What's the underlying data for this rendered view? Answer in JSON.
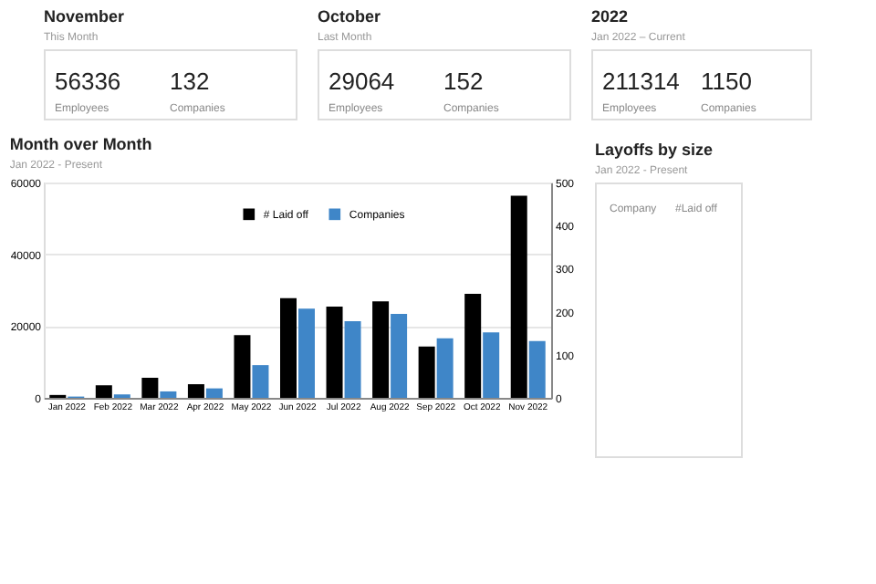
{
  "chart_data": [
    {
      "type": "other",
      "title": "November",
      "subtitle": "This Month",
      "annotations": [
        "56336",
        "Employees",
        "132",
        "Companies"
      ]
    },
    {
      "type": "other",
      "title": "October",
      "subtitle": "Last Month",
      "annotations": [
        "29064",
        "Employees",
        "152",
        "Companies"
      ]
    },
    {
      "type": "other",
      "title": "2022",
      "subtitle": "Jan 2022 – Current",
      "annotations": [
        "211314",
        "Employees",
        "1150",
        "Companies"
      ]
    },
    {
      "type": "bar",
      "title": "Month over Month",
      "subtitle": "Jan 2022 - Present",
      "categories": [
        "Jan 2022",
        "Feb 2022",
        "Mar 2022",
        "Apr 2022",
        "May 2022",
        "Jun 2022",
        "Jul 2022",
        "Aug 2022",
        "Sep 2022",
        "Oct 2022",
        "Nov 2022"
      ],
      "series": [
        {
          "name": "# Laid off",
          "color": "#000000",
          "values": [
            800,
            3500,
            5600,
            3800,
            17500,
            27800,
            25400,
            26900,
            14300,
            29000,
            56300
          ]
        },
        {
          "name": "Companies",
          "color": "#3f86c8",
          "axis": "y2",
          "values": [
            3,
            8,
            15,
            22,
            76,
            207,
            178,
            195,
            138,
            152,
            132
          ]
        }
      ],
      "ylim": [
        0,
        60000
      ],
      "yticks": [
        0,
        20000,
        40000,
        60000
      ],
      "y2lim": [
        0,
        500
      ],
      "y2ticks": [
        0,
        100,
        200,
        300,
        400,
        500
      ],
      "grid": "y",
      "legend": "top"
    },
    {
      "type": "other",
      "title": "Layoffs by size",
      "subtitle": "Jan 2022 - Present",
      "annotations": [
        "Company",
        "#Laid off"
      ]
    }
  ]
}
